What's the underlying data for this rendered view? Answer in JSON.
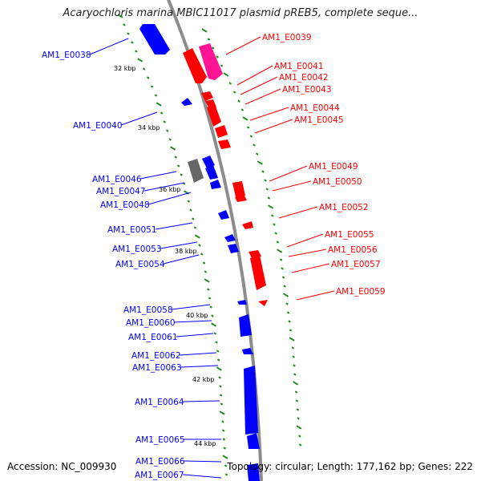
{
  "title": "Acaryochloris marina MBIC11017 plasmid pREB5, complete seque...",
  "accession": "Accession: NC_009930",
  "info": "Topology: circular; Length: 177,162 bp; Genes: 222",
  "colors": {
    "forward": "#0000ff",
    "reverse": "#ff0000",
    "pink": "#ff1493",
    "gray": "#666666",
    "tick": "#1a8a1a",
    "backbone": "#8c8c8c"
  },
  "kbp_marks": [
    "32 kbp",
    "34 kbp",
    "36 kbp",
    "38 kbp",
    "40 kbp",
    "42 kbp",
    "44 kbp"
  ],
  "left_genes": [
    "AM1_E0038",
    "AM1_E0040",
    "AM1_E0046",
    "AM1_E0047",
    "AM1_E0048",
    "AM1_E0051",
    "AM1_E0053",
    "AM1_E0054",
    "AM1_E0058",
    "AM1_E0060",
    "AM1_E0061",
    "AM1_E0062",
    "AM1_E0063",
    "AM1_E0064",
    "AM1_E0065",
    "AM1_E0066",
    "AM1_E0067"
  ],
  "right_genes": [
    "AM1_E0039",
    "AM1_E0041",
    "AM1_E0042",
    "AM1_E0043",
    "AM1_E0044",
    "AM1_E0045",
    "AM1_E0049",
    "AM1_E0050",
    "AM1_E0052",
    "AM1_E0055",
    "AM1_E0056",
    "AM1_E0057",
    "AM1_E0059"
  ]
}
